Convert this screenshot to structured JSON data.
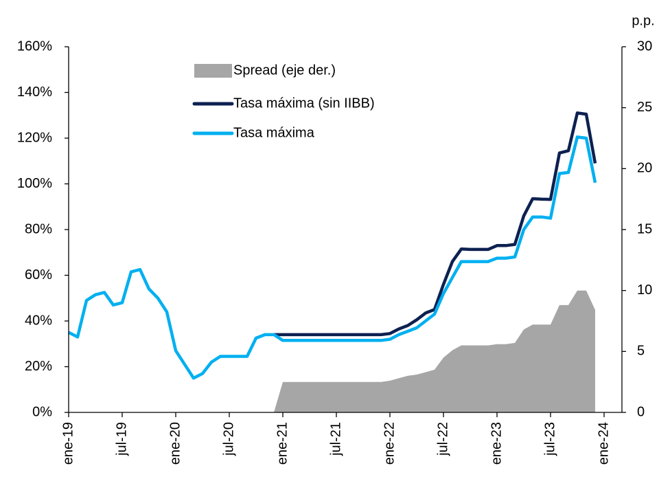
{
  "chart_data": {
    "type": "line",
    "y2_label": "p.p.",
    "x": [
      0,
      1,
      2,
      3,
      4,
      5,
      6,
      7,
      8,
      9,
      10,
      11,
      12,
      13,
      14,
      15,
      16,
      17,
      18,
      19,
      20,
      21,
      22,
      23,
      24,
      25,
      26,
      27,
      28,
      29,
      30,
      31,
      32,
      33,
      34,
      35,
      36,
      37,
      38,
      39,
      40,
      41,
      42,
      43,
      44,
      45,
      46,
      47,
      48,
      49,
      50,
      51,
      52,
      53,
      54,
      55,
      56,
      57,
      58,
      59
    ],
    "xlim": [
      0,
      62
    ],
    "xticks": [
      {
        "value": 0,
        "label": "ene-19"
      },
      {
        "value": 6,
        "label": "jul-19"
      },
      {
        "value": 12,
        "label": "ene-20"
      },
      {
        "value": 18,
        "label": "jul-20"
      },
      {
        "value": 24,
        "label": "ene-21"
      },
      {
        "value": 30,
        "label": "jul-21"
      },
      {
        "value": 36,
        "label": "ene-22"
      },
      {
        "value": 42,
        "label": "jul-22"
      },
      {
        "value": 48,
        "label": "ene-23"
      },
      {
        "value": 54,
        "label": "jul-23"
      },
      {
        "value": 60,
        "label": "ene-24"
      }
    ],
    "ylim": [
      0,
      160
    ],
    "yticks": [
      {
        "value": 0,
        "label": "0%"
      },
      {
        "value": 20,
        "label": "20%"
      },
      {
        "value": 40,
        "label": "40%"
      },
      {
        "value": 60,
        "label": "60%"
      },
      {
        "value": 80,
        "label": "80%"
      },
      {
        "value": 100,
        "label": "100%"
      },
      {
        "value": 120,
        "label": "120%"
      },
      {
        "value": 140,
        "label": "140%"
      },
      {
        "value": 160,
        "label": "160%"
      }
    ],
    "y2lim": [
      0,
      30
    ],
    "y2ticks": [
      0,
      5,
      10,
      15,
      20,
      25,
      30
    ],
    "series": [
      {
        "name": "Spread (eje der.)",
        "kind": "area",
        "axis": "y2",
        "color": "#a6a6a6",
        "values": [
          null,
          null,
          null,
          null,
          null,
          null,
          null,
          null,
          null,
          null,
          null,
          null,
          null,
          null,
          null,
          null,
          null,
          null,
          null,
          null,
          null,
          null,
          null,
          0,
          2.5,
          2.5,
          2.5,
          2.5,
          2.5,
          2.5,
          2.5,
          2.5,
          2.5,
          2.5,
          2.5,
          2.5,
          2.6,
          2.8,
          3.0,
          3.1,
          3.3,
          3.5,
          4.5,
          5.1,
          5.5,
          5.5,
          5.5,
          5.5,
          5.6,
          5.6,
          5.7,
          6.8,
          7.2,
          7.2,
          7.2,
          8.8,
          8.8,
          10,
          10,
          8.4
        ]
      },
      {
        "name": "Tasa máxima (sin IIBB)",
        "kind": "line",
        "color": "#0d2150",
        "values": [
          null,
          null,
          null,
          null,
          null,
          null,
          null,
          null,
          null,
          null,
          null,
          null,
          null,
          null,
          null,
          null,
          null,
          null,
          null,
          null,
          null,
          null,
          null,
          34,
          34,
          34,
          34,
          34,
          34,
          34,
          34,
          34,
          34,
          34,
          34,
          34,
          34.5,
          36.5,
          38,
          40.5,
          43.5,
          45,
          56,
          66,
          71.5,
          71.3,
          71.3,
          71.3,
          73,
          73,
          73.5,
          86,
          93.5,
          93.3,
          93.2,
          113.5,
          114.5,
          131,
          130.5,
          109
        ]
      },
      {
        "name": "Tasa máxima",
        "kind": "line",
        "color": "#00b0f0",
        "values": [
          35,
          33,
          49,
          51.5,
          52.5,
          47,
          48,
          61.5,
          62.5,
          54,
          50,
          44,
          27,
          21,
          15,
          17,
          22,
          24.5,
          24.5,
          24.5,
          24.5,
          32.5,
          34,
          34,
          31.5,
          31.5,
          31.5,
          31.5,
          31.5,
          31.5,
          31.5,
          31.5,
          31.5,
          31.5,
          31.5,
          31.5,
          32,
          34,
          35.5,
          37,
          40,
          43,
          52,
          59,
          66,
          66,
          66,
          66,
          67.5,
          67.5,
          68,
          80,
          85.5,
          85.5,
          85,
          104.5,
          105,
          120.5,
          120,
          100.5
        ]
      }
    ]
  }
}
